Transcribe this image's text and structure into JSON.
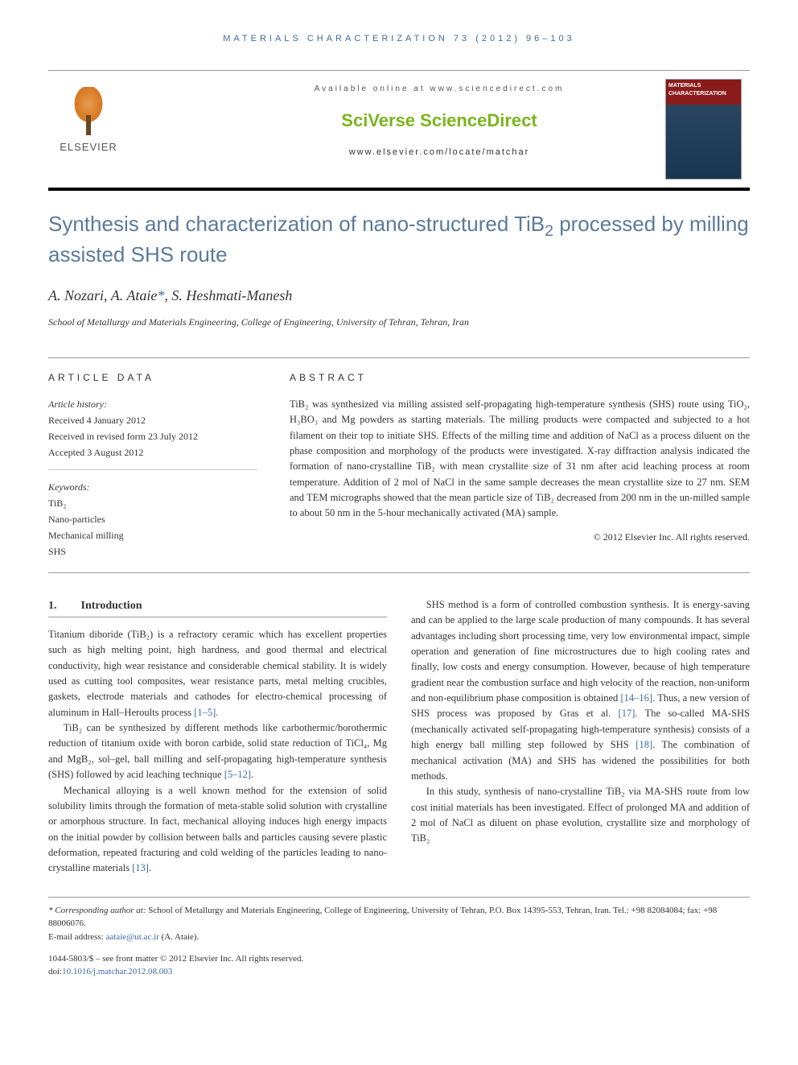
{
  "running_header": "MATERIALS CHARACTERIZATION 73 (2012) 96–103",
  "masthead": {
    "available_text": "Available online at www.sciencedirect.com",
    "platform_name": "SciVerse ScienceDirect",
    "journal_url": "www.elsevier.com/locate/matchar",
    "publisher_name": "ELSEVIER",
    "cover_journal_title": "MATERIALS CHARACTERIZATION"
  },
  "title_parts": {
    "pre": "Synthesis and characterization of nano-structured TiB",
    "sub": "2",
    "post": " processed by milling assisted SHS route"
  },
  "authors_parts": {
    "a1": "A. Nozari, ",
    "a2": "A. Ataie",
    "star": "*",
    "a3": ", S. Heshmati-Manesh"
  },
  "affiliation": "School of Metallurgy and Materials Engineering, College of Engineering, University of Tehran, Tehran, Iran",
  "article_data": {
    "heading": "ARTICLE DATA",
    "history_label": "Article history:",
    "received": "Received 4 January 2012",
    "revised": "Received in revised form 23 July 2012",
    "accepted": "Accepted 3 August 2012",
    "keywords_label": "Keywords:",
    "keywords": [
      "TiB₂",
      "Nano-particles",
      "Mechanical milling",
      "SHS"
    ]
  },
  "abstract": {
    "heading": "ABSTRACT",
    "text": "TiB₂ was synthesized via milling assisted self-propagating high-temperature synthesis (SHS) route using TiO₂, H₃BO₃ and Mg powders as starting materials. The milling products were compacted and subjected to a hot filament on their top to initiate SHS. Effects of the milling time and addition of NaCl as a process diluent on the phase composition and morphology of the products were investigated. X-ray diffraction analysis indicated the formation of nano-crystalline TiB₂ with mean crystallite size of 31 nm after acid leaching process at room temperature. Addition of 2 mol of NaCl in the same sample decreases the mean crystallite size to 27 nm. SEM and TEM micrographs showed that the mean particle size of TiB₂ decreased from 200 nm in the un-milled sample to about 50 nm in the 5-hour mechanically activated (MA) sample.",
    "copyright": "© 2012 Elsevier Inc. All rights reserved."
  },
  "section1": {
    "number": "1.",
    "title": "Introduction",
    "p1": "Titanium diboride (TiB₂) is a refractory ceramic which has excellent properties such as high melting point, high hardness, and good thermal and electrical conductivity, high wear resistance and considerable chemical stability. It is widely used as cutting tool composites, wear resistance parts, metal melting crucibles, gaskets, electrode materials and cathodes for electro-chemical processing of aluminum in Hall–Heroults process ",
    "c1": "[1–5]",
    "p1b": ".",
    "p2": "TiB₂ can be synthesized by different methods like carbothermic/borothermic reduction of titanium oxide with boron carbide, solid state reduction of TiCl₄, Mg and MgB₂, sol–gel, ball milling and self-propagating high-temperature synthesis (SHS) followed by acid leaching technique ",
    "c2": "[5–12]",
    "p2b": ".",
    "p3": "Mechanical alloying is a well known method for the extension of solid solubility limits through the formation of meta-stable solid solution with crystalline or amorphous structure. In fact, mechanical alloying induces high energy impacts on the initial powder by collision between balls and particles causing severe plastic deformation, repeated fracturing and cold welding of the particles leading to nano-crystalline materials ",
    "c3": "[13]",
    "p3b": ".",
    "p4": "SHS method is a form of controlled combustion synthesis. It is energy-saving and can be applied to the large scale production of many compounds. It has several advantages including short processing time, very low environmental impact, simple operation and generation of fine microstructures due to high cooling rates and finally, low costs and energy consumption. However, because of high temperature gradient near the combustion surface and high velocity of the reaction, non-uniform and non-equilibrium phase composition is obtained ",
    "c4": "[14–16]",
    "p4b": ". Thus, a new version of SHS process was proposed by Gras et al. ",
    "c5": "[17]",
    "p4c": ". The so-called MA-SHS (mechanically activated self-propagating high-temperature synthesis) consists of a high energy ball milling step followed by SHS ",
    "c6": "[18]",
    "p4d": ". The combination of mechanical activation (MA) and SHS has widened the possibilities for both methods.",
    "p5": "In this study, synthesis of nano-crystalline TiB₂ via MA-SHS route from low cost initial materials has been investigated. Effect of prolonged MA and addition of 2 mol of NaCl as diluent on phase evolution, crystallite size and morphology of TiB₂"
  },
  "footnotes": {
    "corr_label": "* Corresponding author at:",
    "corr_text": " School of Metallurgy and Materials Engineering, College of Engineering, University of Tehran, P.O. Box 14395-553, Tehran, Iran. Tel.: +98 82084084; fax: +98 88006076.",
    "email_label": "E-mail address: ",
    "email": "aataie@ut.ac.ir",
    "email_author": " (A. Ataie)."
  },
  "bottom": {
    "issn_line": "1044-5803/$ – see front matter © 2012 Elsevier Inc. All rights reserved.",
    "doi_label": "doi:",
    "doi": "10.1016/j.matchar.2012.08.003"
  },
  "colors": {
    "link": "#3b6aa0",
    "title": "#5b7a9a",
    "sciverse": "#7ab51d"
  }
}
